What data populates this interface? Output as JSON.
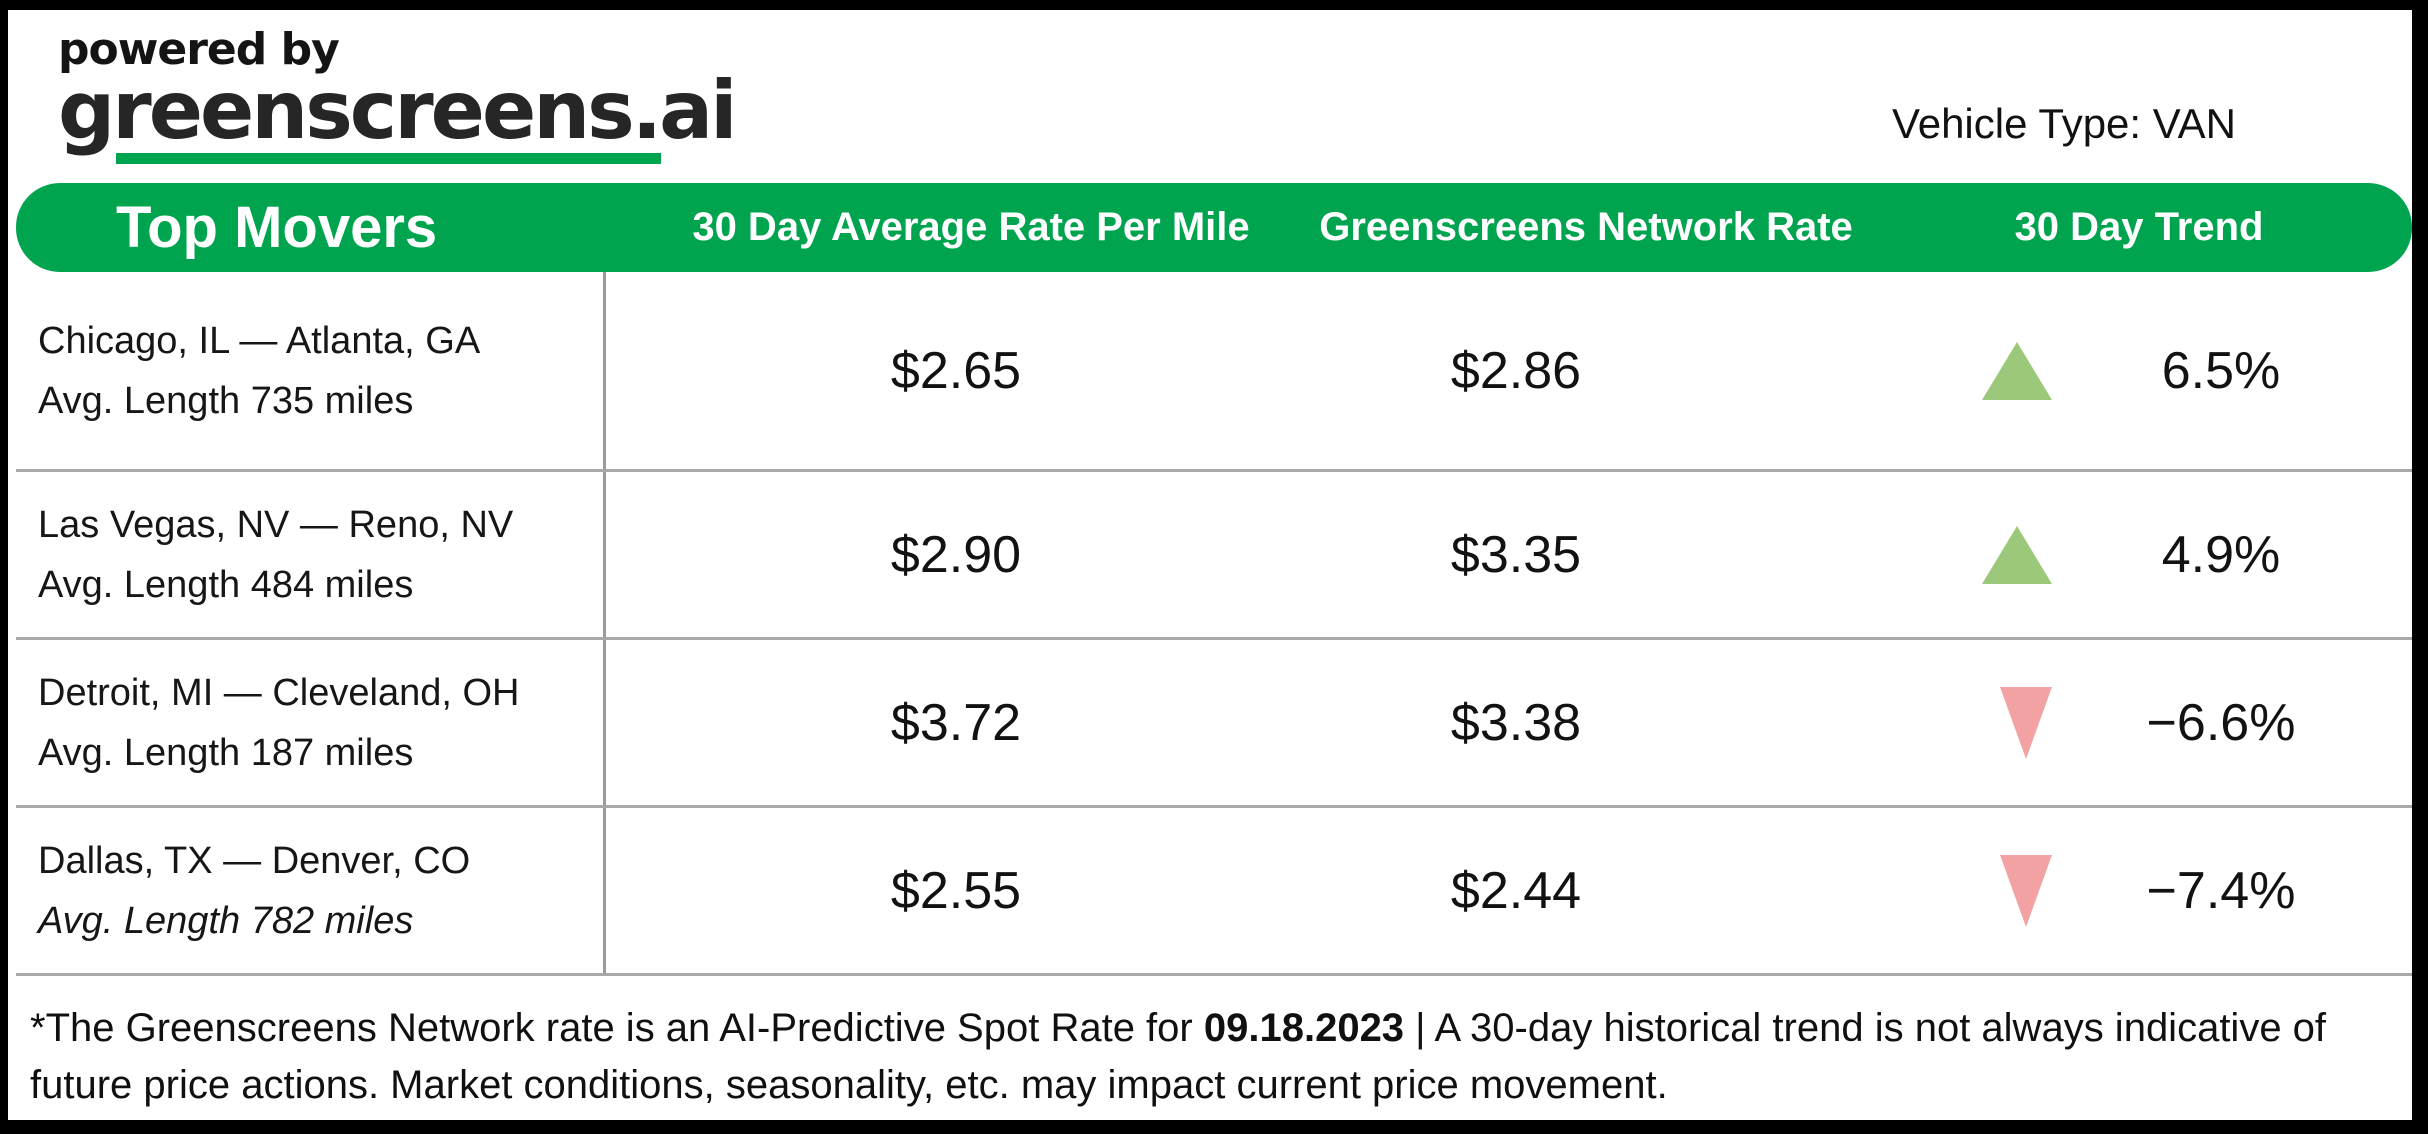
{
  "header": {
    "powered_by": "powered by",
    "brand": "greenscreens.ai",
    "vehicle_type": "Vehicle Type: VAN"
  },
  "table": {
    "title": "Top Movers",
    "columns": {
      "avg_rate": "30 Day Average Rate Per Mile",
      "network_rate": "Greenscreens Network Rate",
      "trend": "30 Day Trend"
    },
    "rows": [
      {
        "lane": "Chicago, IL — Atlanta, GA",
        "avg_length": "Avg. Length 735 miles",
        "length_style": "normal",
        "avg_rate": "$2.65",
        "network_rate": "$2.86",
        "trend_direction": "up",
        "trend_icon_name": "trend-up-icon",
        "trend_pct": "6.5%"
      },
      {
        "lane": "Las Vegas, NV — Reno, NV",
        "avg_length": "Avg. Length 484 miles",
        "length_style": "normal",
        "avg_rate": "$2.90",
        "network_rate": "$3.35",
        "trend_direction": "up",
        "trend_icon_name": "trend-up-icon",
        "trend_pct": "4.9%"
      },
      {
        "lane": "Detroit, MI — Cleveland, OH",
        "avg_length": "Avg. Length 187 miles",
        "length_style": "normal",
        "avg_rate": "$3.72",
        "network_rate": "$3.38",
        "trend_direction": "down",
        "trend_icon_name": "trend-down-icon",
        "trend_pct": "−6.6%"
      },
      {
        "lane": "Dallas, TX — Denver, CO",
        "avg_length": "Avg. Length 782 miles",
        "length_style": "italic",
        "avg_rate": "$2.55",
        "network_rate": "$2.44",
        "trend_direction": "down",
        "trend_icon_name": "trend-down-icon",
        "trend_pct": "−7.4%"
      }
    ]
  },
  "footer": {
    "prefix": "*The Greenscreens Network rate is an AI-Predictive Spot Rate for ",
    "date": "09.18.2023",
    "suffix": " | A 30-day historical trend is not always indicative of future price actions. Market conditions, seasonality, etc. may impact current price movement."
  },
  "colors": {
    "brand_green": "#00A44F",
    "trend_up": "#9CC87B",
    "trend_down": "#F2A2A2"
  }
}
